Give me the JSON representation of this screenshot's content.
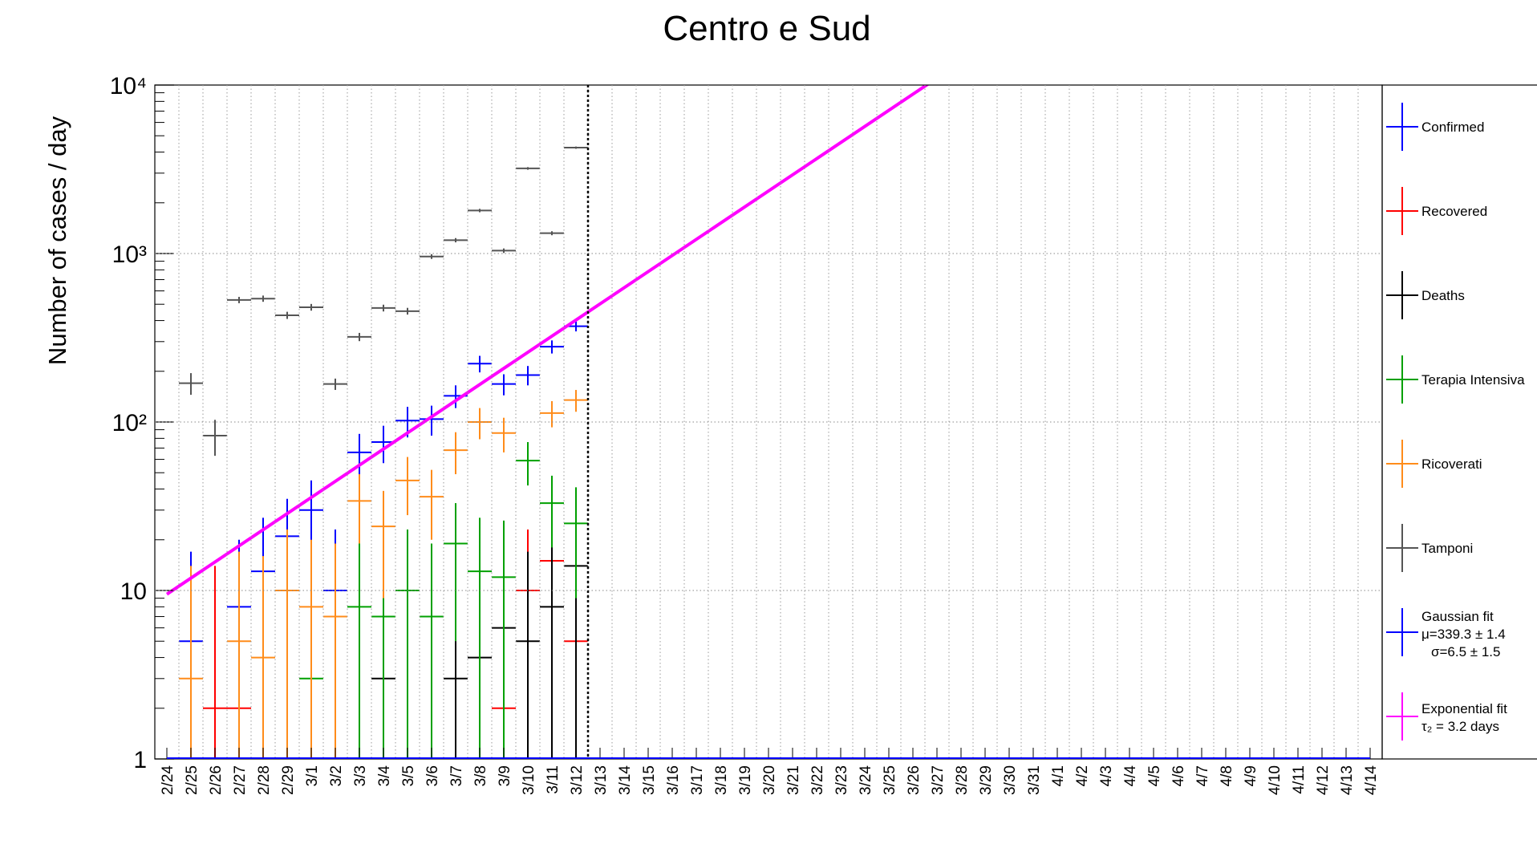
{
  "chart_data": {
    "type": "errorbar",
    "title": "Centro e Sud",
    "y_label": "Number of cases / day",
    "log_y": true,
    "grid": true,
    "ylim": [
      1,
      10000
    ],
    "yticks": [
      1,
      10,
      {
        "value": 100,
        "label": "10²"
      },
      {
        "value": 1000,
        "label": "10³"
      },
      {
        "value": 10000,
        "label": "10⁴"
      }
    ],
    "categories": [
      "2/24",
      "2/25",
      "2/26",
      "2/27",
      "2/28",
      "2/29",
      "3/1",
      "3/2",
      "3/3",
      "3/4",
      "3/5",
      "3/6",
      "3/7",
      "3/8",
      "3/9",
      "3/10",
      "3/11",
      "3/12",
      "3/13",
      "3/14",
      "3/15",
      "3/16",
      "3/17",
      "3/18",
      "3/19",
      "3/20",
      "3/21",
      "3/22",
      "3/23",
      "3/24",
      "3/25",
      "3/26",
      "3/27",
      "3/28",
      "3/29",
      "3/30",
      "3/31",
      "4/1",
      "4/2",
      "4/3",
      "4/4",
      "4/5",
      "4/6",
      "4/7",
      "4/8",
      "4/9",
      "4/10",
      "4/11",
      "4/12",
      "4/13",
      "4/14"
    ],
    "series": [
      {
        "name": "Confirmed",
        "color": "#0000ff",
        "values": [
          null,
          5,
          null,
          8,
          13,
          21,
          30,
          10,
          66,
          76,
          102,
          104,
          143,
          222,
          168,
          190,
          280,
          370,
          null,
          null,
          null,
          null,
          null,
          null,
          null,
          null,
          null,
          null,
          null,
          null,
          null,
          null,
          null,
          null,
          null,
          null,
          null,
          null,
          null,
          null,
          null,
          null,
          null,
          null,
          null,
          null,
          null,
          null,
          null,
          null,
          null
        ],
        "errors": [
          null,
          12,
          null,
          12,
          14,
          14,
          15,
          13,
          19,
          19,
          21,
          21,
          22,
          25,
          24,
          25,
          25,
          25,
          null,
          null,
          null,
          null,
          null,
          null,
          null,
          null,
          null,
          null,
          null,
          null,
          null,
          null,
          null,
          null,
          null,
          null,
          null,
          null,
          null,
          null,
          null,
          null,
          null,
          null,
          null,
          null,
          null,
          null,
          null,
          null,
          null
        ]
      },
      {
        "name": "Recovered",
        "color": "#ff0000",
        "values": [
          null,
          null,
          2,
          2,
          null,
          null,
          null,
          null,
          null,
          null,
          null,
          null,
          null,
          null,
          2,
          10,
          15,
          5,
          null,
          null,
          null,
          null,
          null,
          null,
          null,
          null,
          null,
          null,
          null,
          null,
          null,
          null,
          null,
          null,
          null,
          null,
          null,
          null,
          null,
          null,
          null,
          null,
          null,
          null,
          null,
          null,
          null,
          null,
          null,
          null,
          null
        ],
        "errors": [
          null,
          null,
          12,
          12,
          null,
          null,
          null,
          null,
          null,
          null,
          null,
          null,
          null,
          null,
          1,
          13,
          14,
          4,
          null,
          null,
          null,
          null,
          null,
          null,
          null,
          null,
          null,
          null,
          null,
          null,
          null,
          null,
          null,
          null,
          null,
          null,
          null,
          null,
          null,
          null,
          null,
          null,
          null,
          null,
          null,
          null,
          null,
          null,
          null,
          null,
          null
        ]
      },
      {
        "name": "Deaths",
        "color": "#000000",
        "values": [
          null,
          null,
          null,
          null,
          null,
          null,
          null,
          null,
          null,
          3,
          null,
          null,
          3,
          4,
          6,
          5,
          8,
          14,
          null,
          null,
          null,
          null,
          null,
          null,
          null,
          null,
          null,
          null,
          null,
          null,
          null,
          null,
          null,
          null,
          null,
          null,
          null,
          null,
          null,
          null,
          null,
          null,
          null,
          null,
          null,
          null,
          null,
          null,
          null,
          null,
          null
        ],
        "errors": [
          null,
          null,
          null,
          null,
          null,
          null,
          null,
          null,
          null,
          12,
          null,
          null,
          12,
          12,
          13,
          12,
          13,
          14,
          null,
          null,
          null,
          null,
          null,
          null,
          null,
          null,
          null,
          null,
          null,
          null,
          null,
          null,
          null,
          null,
          null,
          null,
          null,
          null,
          null,
          null,
          null,
          null,
          null,
          null,
          null,
          null,
          null,
          null,
          null,
          null,
          null
        ]
      },
      {
        "name": "Terapia Intensiva",
        "color": "#00a000",
        "values": [
          null,
          null,
          null,
          null,
          null,
          null,
          3,
          null,
          8,
          7,
          10,
          7,
          19,
          13,
          12,
          59,
          33,
          25,
          null,
          null,
          null,
          null,
          null,
          null,
          null,
          null,
          null,
          null,
          null,
          null,
          null,
          null,
          null,
          null,
          null,
          null,
          null,
          null,
          null,
          null,
          null,
          null,
          null,
          null,
          null,
          null,
          null,
          null,
          null,
          null,
          null
        ],
        "errors": [
          null,
          null,
          null,
          null,
          null,
          null,
          11,
          null,
          11,
          11,
          13,
          12,
          14,
          14,
          14,
          17,
          15,
          16,
          null,
          null,
          null,
          null,
          null,
          null,
          null,
          null,
          null,
          null,
          null,
          null,
          null,
          null,
          null,
          null,
          null,
          null,
          null,
          null,
          null,
          null,
          null,
          null,
          null,
          null,
          null,
          null,
          null,
          null,
          null,
          null,
          null
        ]
      },
      {
        "name": "Ricoverati",
        "color": "#ff8c1a",
        "values": [
          null,
          3,
          null,
          5,
          4,
          10,
          8,
          7,
          34,
          24,
          45,
          36,
          68,
          100,
          86,
          null,
          113,
          135,
          null,
          null,
          null,
          null,
          null,
          null,
          null,
          null,
          null,
          null,
          null,
          null,
          null,
          null,
          null,
          null,
          null,
          null,
          null,
          null,
          null,
          null,
          null,
          null,
          null,
          null,
          null,
          null,
          null,
          null,
          null,
          null,
          null
        ],
        "errors": [
          null,
          11,
          null,
          12,
          12,
          13,
          12,
          12,
          15,
          15,
          17,
          16,
          19,
          21,
          20,
          null,
          20,
          20,
          null,
          null,
          null,
          null,
          null,
          null,
          null,
          null,
          null,
          null,
          null,
          null,
          null,
          null,
          null,
          null,
          null,
          null,
          null,
          null,
          null,
          null,
          null,
          null,
          null,
          null,
          null,
          null,
          null,
          null,
          null,
          null,
          null
        ]
      },
      {
        "name": "Tamponi",
        "color": "#555555",
        "values": [
          null,
          170,
          83,
          530,
          540,
          430,
          480,
          168,
          320,
          475,
          455,
          960,
          1200,
          1800,
          1040,
          3200,
          1320,
          4250,
          null,
          null,
          null,
          null,
          null,
          null,
          null,
          null,
          null,
          null,
          null,
          null,
          null,
          null,
          null,
          null,
          null,
          null,
          null,
          null,
          null,
          null,
          null,
          null,
          null,
          null,
          null,
          null,
          null,
          null,
          null,
          null,
          null
        ],
        "errors": [
          null,
          25,
          20,
          23,
          23,
          21,
          22,
          13,
          18,
          22,
          21,
          31,
          35,
          42,
          32,
          57,
          36,
          65,
          null,
          null,
          null,
          null,
          null,
          null,
          null,
          null,
          null,
          null,
          null,
          null,
          null,
          null,
          null,
          null,
          null,
          null,
          null,
          null,
          null,
          null,
          null,
          null,
          null,
          null,
          null,
          null,
          null,
          null,
          null,
          null,
          null
        ]
      }
    ],
    "fits": [
      {
        "name": "Gaussian fit",
        "color": "#0000ff",
        "lines": [
          "μ=339.3 ± 1.4",
          "σ=6.5 ± 1.5"
        ]
      },
      {
        "name": "Exponential fit",
        "color": "#ff00ff",
        "lines": [
          "τ₂ = 3.2 days"
        ],
        "x": [
          "2/24",
          "3/27"
        ],
        "values": [
          9.5,
          11000
        ]
      }
    ]
  }
}
